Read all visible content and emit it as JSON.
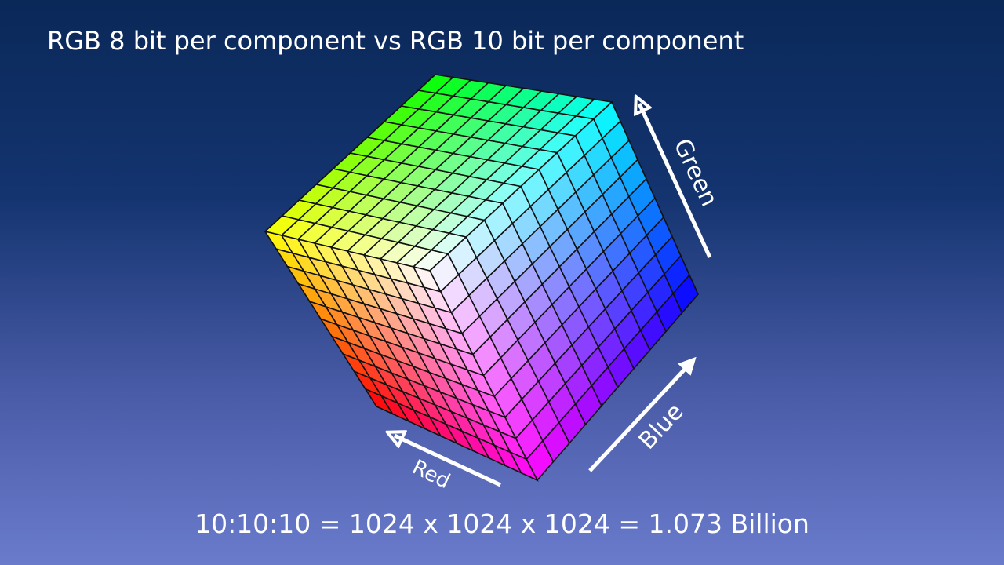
{
  "title": "RGB 8 bit per component vs RGB 10 bit per component",
  "axes": {
    "green": "Green",
    "blue": "Blue",
    "red": "Red"
  },
  "caption": "10:10:10 = 1024 x 1024 x 1024 = 1.073 Billion"
}
